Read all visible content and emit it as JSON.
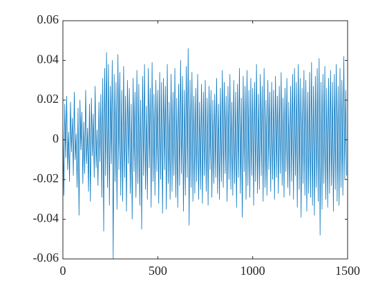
{
  "chart_data": {
    "type": "line",
    "color": "#0072bd",
    "box": true,
    "xlim": [
      0,
      1500
    ],
    "xticks": [
      0,
      500,
      1000,
      1500
    ],
    "ylim": [
      -0.06,
      0.06
    ],
    "yticks": [
      -0.06,
      -0.04,
      -0.02,
      0,
      0.02,
      0.04,
      0.06
    ],
    "x": [
      0,
      5,
      10,
      15,
      20,
      25,
      30,
      35,
      40,
      45,
      50,
      55,
      60,
      65,
      70,
      75,
      80,
      85,
      90,
      95,
      100,
      105,
      110,
      115,
      120,
      125,
      130,
      135,
      140,
      145,
      150,
      155,
      160,
      165,
      170,
      175,
      180,
      185,
      190,
      195,
      200,
      205,
      210,
      215,
      220,
      225,
      230,
      235,
      240,
      245,
      250,
      255,
      260,
      265,
      270,
      275,
      280,
      285,
      290,
      295,
      300,
      305,
      310,
      315,
      320,
      325,
      330,
      335,
      340,
      345,
      350,
      355,
      360,
      365,
      370,
      375,
      380,
      385,
      390,
      395,
      400,
      405,
      410,
      415,
      420,
      425,
      430,
      435,
      440,
      445,
      450,
      455,
      460,
      465,
      470,
      475,
      480,
      485,
      490,
      495,
      500,
      505,
      510,
      515,
      520,
      525,
      530,
      535,
      540,
      545,
      550,
      555,
      560,
      565,
      570,
      575,
      580,
      585,
      590,
      595,
      600,
      605,
      610,
      615,
      620,
      625,
      630,
      635,
      640,
      645,
      650,
      655,
      660,
      665,
      670,
      675,
      680,
      685,
      690,
      695,
      700,
      705,
      710,
      715,
      720,
      725,
      730,
      735,
      740,
      745,
      750,
      755,
      760,
      765,
      770,
      775,
      780,
      785,
      790,
      795,
      800,
      805,
      810,
      815,
      820,
      825,
      830,
      835,
      840,
      845,
      850,
      855,
      860,
      865,
      870,
      875,
      880,
      885,
      890,
      895,
      900,
      905,
      910,
      915,
      920,
      925,
      930,
      935,
      940,
      945,
      950,
      955,
      960,
      965,
      970,
      975,
      980,
      985,
      990,
      995,
      1000,
      1005,
      1010,
      1015,
      1020,
      1025,
      1030,
      1035,
      1040,
      1045,
      1050,
      1055,
      1060,
      1065,
      1070,
      1075,
      1080,
      1085,
      1090,
      1095,
      1100,
      1105,
      1110,
      1115,
      1120,
      1125,
      1130,
      1135,
      1140,
      1145,
      1150,
      1155,
      1160,
      1165,
      1170,
      1175,
      1180,
      1185,
      1190,
      1195,
      1200,
      1205,
      1210,
      1215,
      1220,
      1225,
      1230,
      1235,
      1240,
      1245,
      1250,
      1255,
      1260,
      1265,
      1270,
      1275,
      1280,
      1285,
      1290,
      1295,
      1300,
      1305,
      1310,
      1315,
      1320,
      1325,
      1330,
      1335,
      1340,
      1345,
      1350,
      1355,
      1360,
      1365,
      1370,
      1375,
      1380,
      1385,
      1390,
      1395,
      1400,
      1405,
      1410,
      1415,
      1420,
      1425,
      1430,
      1435,
      1440,
      1445,
      1450,
      1455,
      1460,
      1465,
      1470,
      1475,
      1480,
      1485,
      1490,
      1495
    ],
    "values": [
      0.012,
      -0.028,
      0.018,
      -0.009,
      0.022,
      -0.015,
      0.004,
      -0.021,
      0.019,
      -0.006,
      0.011,
      -0.018,
      0.024,
      -0.01,
      0.003,
      -0.024,
      0.016,
      -0.038,
      0.02,
      -0.005,
      0.014,
      -0.022,
      0.009,
      -0.017,
      0.025,
      -0.012,
      0.006,
      -0.026,
      0.018,
      -0.031,
      0.021,
      -0.008,
      0.013,
      -0.019,
      0.027,
      -0.014,
      0.005,
      -0.023,
      0.019,
      -0.011,
      0.023,
      -0.029,
      0.031,
      -0.046,
      0.036,
      -0.018,
      0.044,
      -0.024,
      0.038,
      -0.033,
      0.027,
      -0.012,
      0.04,
      -0.06,
      0.033,
      -0.021,
      0.029,
      -0.035,
      0.043,
      -0.015,
      0.034,
      -0.028,
      0.025,
      -0.031,
      0.037,
      -0.019,
      0.022,
      -0.036,
      0.03,
      -0.012,
      0.026,
      -0.027,
      0.018,
      -0.04,
      0.031,
      -0.016,
      0.024,
      -0.029,
      0.035,
      -0.022,
      0.028,
      -0.033,
      0.02,
      -0.045,
      0.032,
      -0.018,
      0.038,
      -0.025,
      0.017,
      -0.03,
      0.036,
      -0.014,
      0.026,
      -0.034,
      0.039,
      -0.021,
      0.023,
      -0.028,
      0.03,
      -0.016,
      0.025,
      -0.032,
      0.034,
      -0.02,
      0.029,
      -0.037,
      0.031,
      -0.015,
      0.027,
      -0.035,
      0.038,
      -0.022,
      0.019,
      -0.03,
      0.033,
      -0.026,
      0.024,
      -0.018,
      0.036,
      -0.029,
      0.021,
      -0.034,
      0.028,
      -0.023,
      0.04,
      -0.017,
      0.032,
      -0.036,
      0.025,
      -0.028,
      0.037,
      -0.019,
      0.046,
      -0.043,
      0.03,
      -0.024,
      0.034,
      -0.031,
      0.022,
      -0.027,
      0.026,
      -0.021,
      0.033,
      -0.03,
      0.019,
      -0.025,
      0.028,
      -0.032,
      0.024,
      -0.018,
      0.03,
      -0.026,
      0.021,
      -0.033,
      0.027,
      -0.015,
      0.025,
      -0.029,
      0.02,
      -0.022,
      0.023,
      -0.019,
      0.031,
      -0.027,
      0.018,
      -0.03,
      0.026,
      -0.021,
      0.035,
      -0.024,
      0.029,
      -0.017,
      0.022,
      -0.031,
      0.027,
      -0.02,
      0.033,
      -0.025,
      0.019,
      -0.028,
      0.03,
      -0.022,
      0.024,
      -0.034,
      0.028,
      -0.019,
      0.036,
      -0.027,
      0.021,
      -0.039,
      0.032,
      -0.016,
      0.027,
      -0.03,
      0.035,
      -0.023,
      0.025,
      -0.029,
      0.031,
      -0.018,
      0.026,
      -0.033,
      0.029,
      -0.021,
      0.038,
      -0.027,
      0.023,
      -0.025,
      0.033,
      -0.018,
      0.027,
      -0.031,
      0.036,
      -0.024,
      0.02,
      -0.028,
      0.03,
      -0.015,
      0.024,
      -0.026,
      0.029,
      -0.02,
      0.025,
      -0.03,
      0.032,
      -0.019,
      0.022,
      -0.027,
      0.027,
      -0.017,
      0.034,
      -0.023,
      0.021,
      -0.029,
      0.026,
      -0.016,
      0.031,
      -0.024,
      0.019,
      -0.028,
      0.027,
      -0.021,
      0.033,
      -0.03,
      0.036,
      -0.018,
      0.029,
      -0.034,
      0.038,
      -0.025,
      0.031,
      -0.039,
      0.026,
      -0.022,
      0.035,
      -0.028,
      0.03,
      -0.036,
      0.024,
      -0.027,
      0.034,
      -0.029,
      0.039,
      -0.033,
      0.027,
      -0.038,
      0.032,
      -0.024,
      0.036,
      -0.031,
      0.041,
      -0.048,
      0.029,
      -0.035,
      0.033,
      -0.022,
      0.037,
      -0.03,
      0.026,
      -0.034,
      0.031,
      -0.027,
      0.035,
      -0.023,
      0.029,
      -0.036,
      0.033,
      -0.025,
      0.038,
      -0.031,
      0.027,
      -0.033,
      0.036,
      -0.024,
      0.03,
      -0.028,
      0.042,
      -0.02,
      0.025,
      -0.018
    ]
  }
}
